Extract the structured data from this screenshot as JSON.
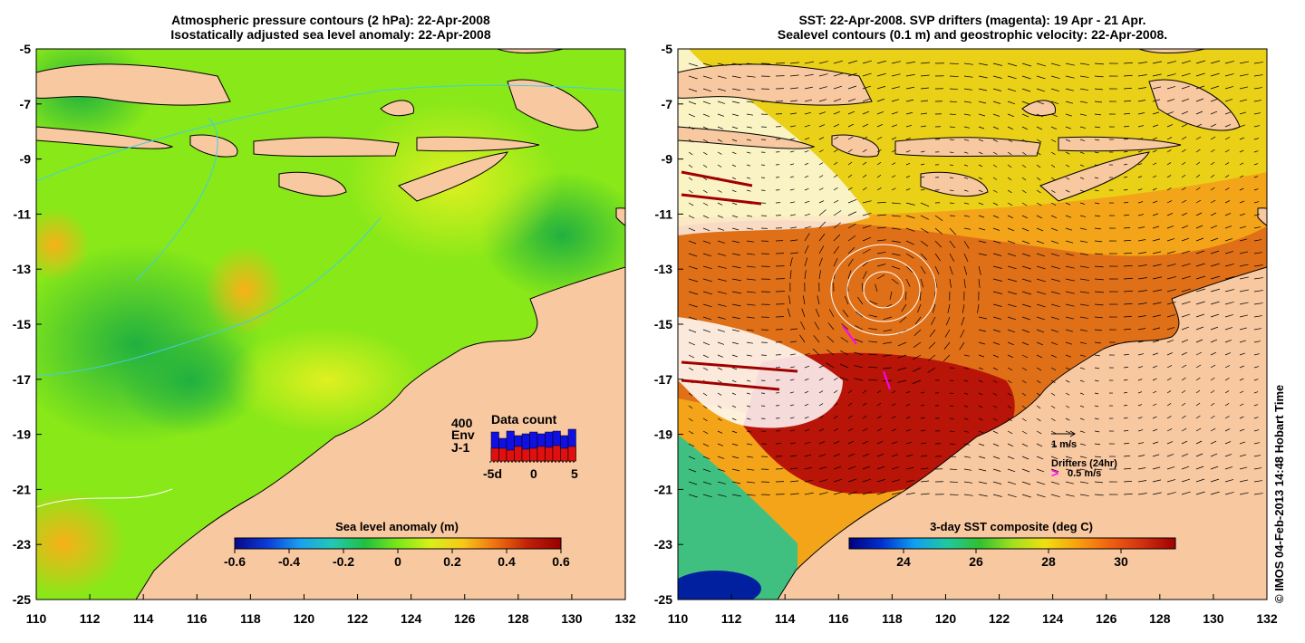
{
  "left_panel": {
    "title_line1": "Atmospheric pressure contours (2 hPa): 22-Apr-2008",
    "title_line2": "Isostatically adjusted sea level anomaly: 22-Apr-2008",
    "colorbar": {
      "title": "Sea level anomaly (m)",
      "range": [
        -0.6,
        0.6
      ],
      "ticks": [
        "-0.6",
        "-0.4",
        "-0.2",
        "0",
        "0.2",
        "0.4",
        "0.6"
      ]
    },
    "inset": {
      "title": "Data count",
      "scale_label": "400",
      "legend": [
        {
          "name": "Env",
          "color": "#1010e0"
        },
        {
          "name": "J-1",
          "color": "#e01010"
        }
      ],
      "x_labels": [
        "-5d",
        "0",
        "5"
      ],
      "env_counts": [
        320,
        250,
        330,
        280,
        300,
        320,
        300,
        320,
        330,
        280,
        350
      ],
      "j1_counts": [
        140,
        140,
        120,
        160,
        130,
        140,
        160,
        150,
        170,
        140,
        160
      ]
    }
  },
  "right_panel": {
    "title_line1": "SST: 22-Apr-2008. SVP drifters (magenta): 19 Apr - 21 Apr.",
    "title_line2": "Sealevel contours (0.1 m) and geostrophic velocity: 22-Apr-2008.",
    "colorbar": {
      "title": "3-day SST composite (deg C)",
      "range": [
        22.5,
        31.5
      ],
      "ticks": [
        "24",
        "26",
        "28",
        "30"
      ]
    },
    "velocity_legend": "1 m/s",
    "drifters_label": "Drifters (24hr)",
    "drifters_scale": "0.5 m/s",
    "drifter_color": "#ff00ff"
  },
  "axes": {
    "x_ticks": [
      "110",
      "112",
      "114",
      "116",
      "118",
      "120",
      "122",
      "124",
      "126",
      "128",
      "130",
      "132"
    ],
    "y_ticks": [
      "-5",
      "-7",
      "-9",
      "-11",
      "-13",
      "-15",
      "-17",
      "-19",
      "-21",
      "-23",
      "-25"
    ],
    "lon_range": [
      110,
      132
    ],
    "lat_range": [
      -25,
      -5
    ]
  },
  "credit": "© IMOS 04-Feb-2013 14:48 Hobart Time",
  "colors": {
    "land": "#f8c8a0",
    "sla_colormap": [
      "#08088c",
      "#0a3cd8",
      "#1aa0f0",
      "#22c8b4",
      "#20c040",
      "#7ae818",
      "#d8f01a",
      "#f8c818",
      "#f07010",
      "#c02008",
      "#980000"
    ],
    "sst_colormap": [
      "#000080",
      "#0030d0",
      "#10a0f0",
      "#20c8a0",
      "#30c030",
      "#a0e020",
      "#f0e010",
      "#f8a010",
      "#f06010",
      "#d03010",
      "#a00000"
    ]
  }
}
